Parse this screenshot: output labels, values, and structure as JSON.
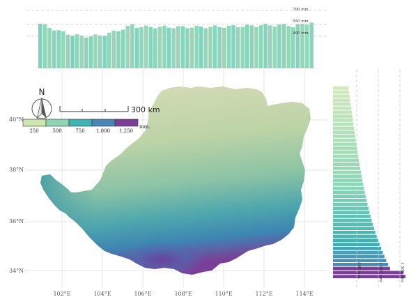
{
  "map": {
    "lon_ticks": [
      "102°E",
      "104°E",
      "106°E",
      "108°E",
      "110°E",
      "112°E",
      "114°E"
    ],
    "lat_ticks": [
      "34°N",
      "36°N",
      "38°N",
      "40°N"
    ],
    "north_arrow": "N",
    "scale_bar": "300 km",
    "legend": {
      "labels": [
        "250",
        "500",
        "750",
        "1,000",
        "1,250"
      ],
      "unit": "mm.",
      "colors": [
        "#cfe5b0",
        "#8fd4b5",
        "#3fb2b3",
        "#4a86b8",
        "#7b3f98"
      ]
    }
  },
  "top_profile": {
    "ref_lines": [
      {
        "value": 700,
        "label": "700 mm."
      },
      {
        "value": 550,
        "label": "550 mm."
      },
      {
        "value": 400,
        "label": "400 mm."
      }
    ]
  },
  "right_profile": {
    "ref_lines": [
      {
        "value": 500,
        "label": "500 mm."
      },
      {
        "value": 1000,
        "label": "1 000 mm."
      },
      {
        "value": 1500,
        "label": "1 500 mm."
      }
    ]
  }
}
